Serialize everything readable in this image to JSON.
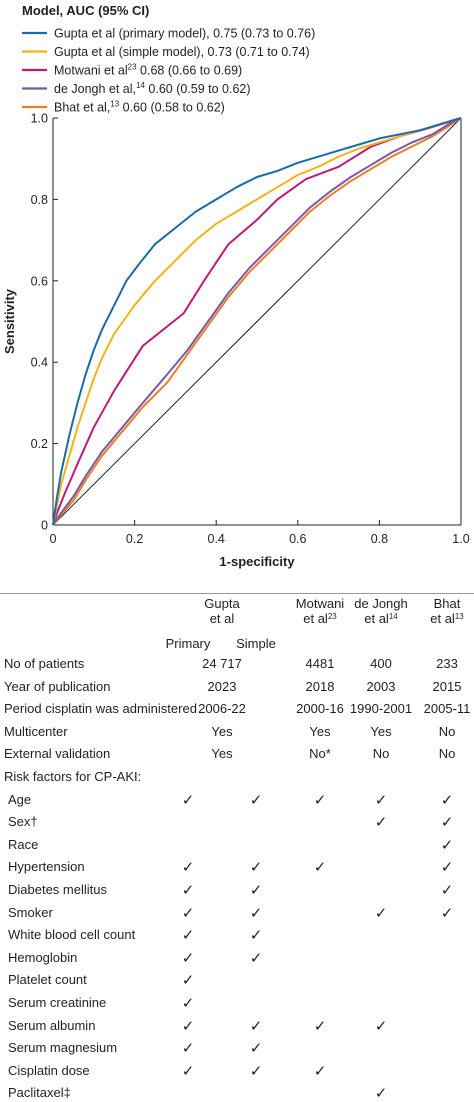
{
  "colors": {
    "gupta_primary": "#1c6aa8",
    "gupta_simple": "#f5b21a",
    "motwani": "#c1187c",
    "de_jongh": "#7a5aa6",
    "bhat": "#ee7d2a",
    "reference": "#231f20"
  },
  "chart_data": {
    "type": "line",
    "title": "",
    "xlabel": "1-specificity",
    "ylabel": "Sensitivity",
    "xlim": [
      0,
      1
    ],
    "ylim": [
      0,
      1
    ],
    "x_ticks": [
      "0",
      "0.2",
      "0.4",
      "0.6",
      "0.8",
      "1.0"
    ],
    "y_ticks": [
      "0",
      "0.2",
      "0.4",
      "0.6",
      "0.8",
      "1.0"
    ],
    "grid": false,
    "legend_title": "Model, AUC (95% CI)",
    "legend_position": "top-left",
    "reference_line": [
      [
        0,
        0
      ],
      [
        1,
        1
      ]
    ],
    "series": [
      {
        "key": "gupta_primary",
        "name": "Gupta et al (primary model), 0.75 (0.73 to 0.76)",
        "legend_parts": [
          "Gupta et al (primary model), 0.75 (0.73 to 0.76)"
        ],
        "x": [
          0,
          0.01,
          0.02,
          0.04,
          0.06,
          0.08,
          0.1,
          0.12,
          0.15,
          0.18,
          0.21,
          0.25,
          0.3,
          0.35,
          0.4,
          0.45,
          0.5,
          0.55,
          0.6,
          0.65,
          0.7,
          0.75,
          0.8,
          0.85,
          0.9,
          0.95,
          1.0
        ],
        "y": [
          0,
          0.07,
          0.13,
          0.22,
          0.3,
          0.37,
          0.43,
          0.48,
          0.54,
          0.6,
          0.64,
          0.69,
          0.73,
          0.77,
          0.8,
          0.83,
          0.855,
          0.87,
          0.89,
          0.905,
          0.92,
          0.935,
          0.95,
          0.96,
          0.97,
          0.985,
          1.0
        ]
      },
      {
        "key": "gupta_simple",
        "name": "Gupta et al (simple model), 0.73 (0.71 to 0.74)",
        "legend_parts": [
          "Gupta et al (simple model), 0.73 (0.71 to 0.74)"
        ],
        "x": [
          0,
          0.01,
          0.02,
          0.04,
          0.06,
          0.08,
          0.1,
          0.12,
          0.15,
          0.2,
          0.25,
          0.3,
          0.35,
          0.4,
          0.45,
          0.5,
          0.55,
          0.6,
          0.65,
          0.7,
          0.75,
          0.8,
          0.85,
          0.9,
          0.95,
          1.0
        ],
        "y": [
          0,
          0.05,
          0.1,
          0.17,
          0.24,
          0.3,
          0.36,
          0.41,
          0.47,
          0.54,
          0.6,
          0.65,
          0.7,
          0.74,
          0.77,
          0.8,
          0.83,
          0.86,
          0.88,
          0.905,
          0.925,
          0.94,
          0.955,
          0.97,
          0.985,
          1.0
        ]
      },
      {
        "key": "motwani",
        "name": "Motwani et al23 0.68 (0.66 to 0.69)",
        "legend_parts": [
          "Motwani et al",
          "23",
          " 0.68 (0.66 to 0.69)"
        ],
        "x": [
          0,
          0.01,
          0.03,
          0.06,
          0.1,
          0.15,
          0.22,
          0.32,
          0.37,
          0.43,
          0.5,
          0.55,
          0.62,
          0.7,
          0.78,
          0.85,
          0.92,
          1.0
        ],
        "y": [
          0,
          0.03,
          0.08,
          0.15,
          0.24,
          0.33,
          0.44,
          0.52,
          0.6,
          0.69,
          0.75,
          0.8,
          0.85,
          0.88,
          0.93,
          0.955,
          0.975,
          1.0
        ]
      },
      {
        "key": "de_jongh",
        "name": "de Jongh et al,14 0.60 (0.59 to 0.62)",
        "legend_parts": [
          "de Jongh et al,",
          "14",
          " 0.60 (0.59 to 0.62)"
        ],
        "x": [
          0,
          0.02,
          0.05,
          0.08,
          0.12,
          0.17,
          0.22,
          0.28,
          0.33,
          0.38,
          0.43,
          0.48,
          0.53,
          0.58,
          0.63,
          0.68,
          0.73,
          0.78,
          0.83,
          0.88,
          0.93,
          0.97,
          1.0
        ],
        "y": [
          0,
          0.03,
          0.07,
          0.12,
          0.18,
          0.24,
          0.3,
          0.37,
          0.43,
          0.5,
          0.57,
          0.63,
          0.68,
          0.73,
          0.78,
          0.82,
          0.855,
          0.885,
          0.915,
          0.94,
          0.96,
          0.985,
          1.0
        ]
      },
      {
        "key": "bhat",
        "name": "Bhat et al,13 0.60 (0.58 to 0.62)",
        "legend_parts": [
          "Bhat et al,",
          "13",
          " 0.60 (0.58 to 0.62)"
        ],
        "x": [
          0,
          0.02,
          0.05,
          0.08,
          0.12,
          0.17,
          0.22,
          0.28,
          0.33,
          0.38,
          0.43,
          0.48,
          0.53,
          0.58,
          0.63,
          0.68,
          0.73,
          0.78,
          0.83,
          0.88,
          0.93,
          0.97,
          1.0
        ],
        "y": [
          0,
          0.025,
          0.06,
          0.11,
          0.17,
          0.23,
          0.29,
          0.35,
          0.42,
          0.49,
          0.56,
          0.62,
          0.67,
          0.72,
          0.77,
          0.81,
          0.845,
          0.875,
          0.905,
          0.93,
          0.955,
          0.98,
          1.0
        ]
      }
    ]
  },
  "table": {
    "headers": [
      {
        "lines": [
          [
            "Gupta"
          ],
          [
            "et al"
          ]
        ]
      },
      {
        "lines": [
          [
            "Motwani"
          ],
          [
            "et al",
            "23"
          ]
        ]
      },
      {
        "lines": [
          [
            "de Jongh"
          ],
          [
            "et al",
            "14"
          ]
        ]
      },
      {
        "lines": [
          [
            "Bhat"
          ],
          [
            "et al",
            "13"
          ]
        ]
      }
    ],
    "subheaders": [
      "Primary",
      "Simple"
    ],
    "check_symbol": "✓",
    "value_rows": [
      {
        "label": "No of patients",
        "values": [
          "24 717",
          "4481",
          "400",
          "233"
        ]
      },
      {
        "label": "Year of publication",
        "values": [
          "2023",
          "2018",
          "2003",
          "2015"
        ]
      },
      {
        "label": "Period cisplatin was administered",
        "values": [
          "2006-22",
          "2000-16",
          "1990-2001",
          "2005-11"
        ]
      },
      {
        "label": "Multicenter",
        "values": [
          "Yes",
          "Yes",
          "Yes",
          "No"
        ]
      },
      {
        "label": "External validation",
        "values": [
          "Yes",
          "No*",
          "No",
          "No"
        ]
      }
    ],
    "risk_header": "Risk factors for CP-AKI:",
    "risk_rows": [
      {
        "label": "Age",
        "checks": [
          true,
          true,
          true,
          true,
          true
        ]
      },
      {
        "label": "Sex†",
        "checks": [
          false,
          false,
          false,
          true,
          true
        ]
      },
      {
        "label": "Race",
        "checks": [
          false,
          false,
          false,
          false,
          true
        ]
      },
      {
        "label": "Hypertension",
        "checks": [
          true,
          true,
          true,
          false,
          true
        ]
      },
      {
        "label": "Diabetes mellitus",
        "checks": [
          true,
          true,
          false,
          false,
          true
        ]
      },
      {
        "label": "Smoker",
        "checks": [
          true,
          true,
          false,
          true,
          true
        ]
      },
      {
        "label": "White blood cell count",
        "checks": [
          true,
          true,
          false,
          false,
          false
        ]
      },
      {
        "label": "Hemoglobin",
        "checks": [
          true,
          true,
          false,
          false,
          false
        ]
      },
      {
        "label": "Platelet count",
        "checks": [
          true,
          false,
          false,
          false,
          false
        ]
      },
      {
        "label": "Serum creatinine",
        "checks": [
          true,
          false,
          false,
          false,
          false
        ]
      },
      {
        "label": "Serum albumin",
        "checks": [
          true,
          true,
          true,
          true,
          false
        ]
      },
      {
        "label": "Serum magnesium",
        "checks": [
          true,
          true,
          false,
          false,
          false
        ]
      },
      {
        "label": "Cisplatin dose",
        "checks": [
          true,
          true,
          true,
          false,
          false
        ]
      },
      {
        "label": "Paclitaxel‡",
        "checks": [
          false,
          false,
          false,
          true,
          false
        ]
      }
    ]
  }
}
